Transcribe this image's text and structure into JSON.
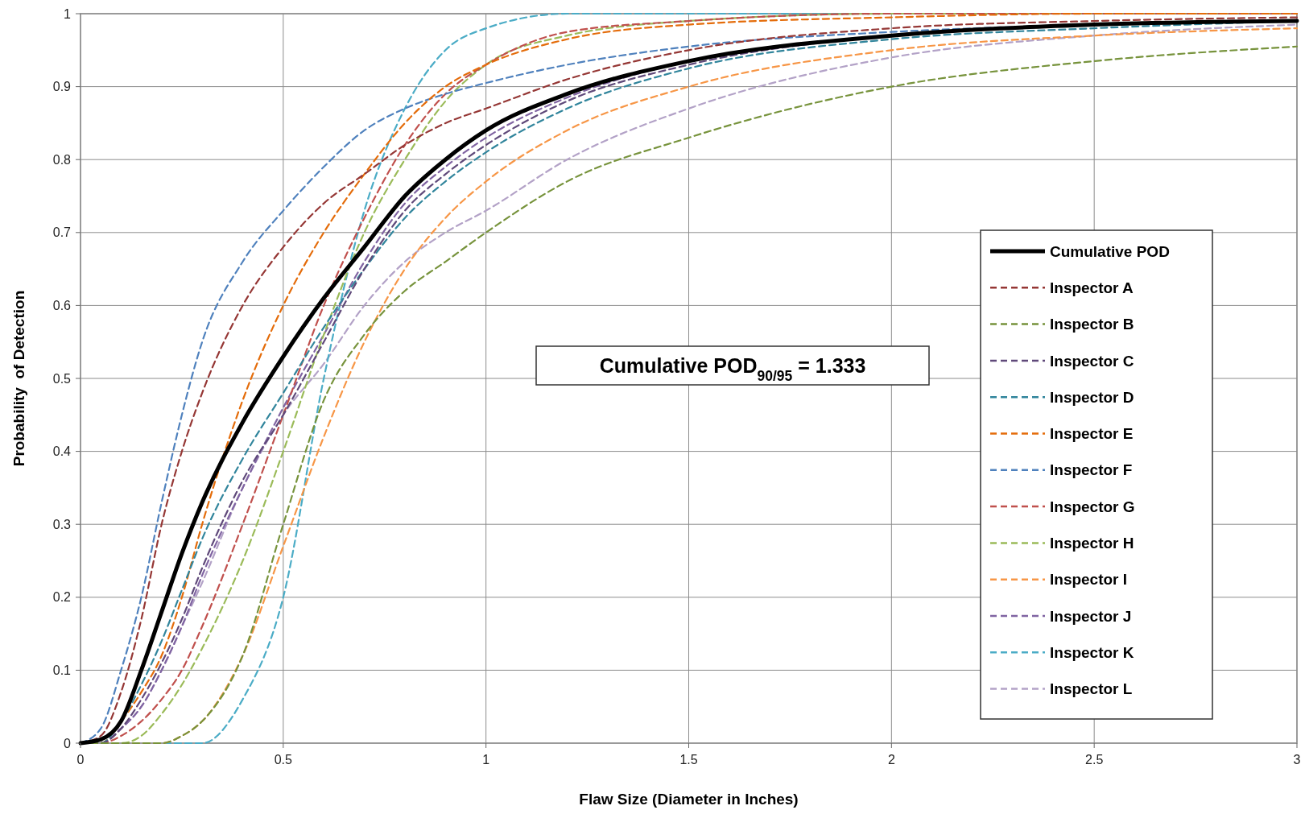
{
  "chart_data": {
    "type": "line",
    "xlabel": "Flaw Size (Diameter in Inches)",
    "ylabel": "Probability  of Detection",
    "annotations": [
      "Cumulative POD$_{90/95}$ = 1.333"
    ],
    "x": [
      0,
      0.05,
      0.1,
      0.15,
      0.2,
      0.25,
      0.3,
      0.4,
      0.5,
      0.6,
      0.7,
      0.8,
      0.9,
      1,
      1.2,
      1.5,
      2,
      2.5,
      3
    ],
    "xlim": [
      0,
      3
    ],
    "xticks": [
      0,
      0.5,
      1,
      1.5,
      2,
      2.5,
      3
    ],
    "ylim": [
      0,
      1
    ],
    "yticks": [
      0,
      0.1,
      0.2,
      0.3,
      0.4,
      0.5,
      0.6,
      0.7,
      0.8,
      0.9,
      1
    ],
    "grid": true,
    "legend": "right",
    "series": [
      {
        "name": "Cumulative POD",
        "color": "#000000",
        "line_style": "solid",
        "values": [
          0,
          0.005,
          0.03,
          0.1,
          0.18,
          0.26,
          0.33,
          0.44,
          0.53,
          0.61,
          0.68,
          0.75,
          0.8,
          0.84,
          0.89,
          0.935,
          0.97,
          0.985,
          0.99
        ]
      },
      {
        "name": "Inspector A",
        "color": "#953735",
        "line_style": "dashed",
        "values": [
          0,
          0.01,
          0.07,
          0.17,
          0.3,
          0.4,
          0.48,
          0.6,
          0.68,
          0.74,
          0.78,
          0.82,
          0.85,
          0.87,
          0.91,
          0.95,
          0.98,
          0.99,
          0.995
        ]
      },
      {
        "name": "Inspector B",
        "color": "#77933c",
        "line_style": "dashed",
        "values": [
          0,
          0,
          0,
          0,
          0,
          0.01,
          0.03,
          0.12,
          0.3,
          0.47,
          0.56,
          0.62,
          0.66,
          0.7,
          0.77,
          0.83,
          0.9,
          0.935,
          0.955
        ]
      },
      {
        "name": "Inspector C",
        "color": "#5f497a",
        "line_style": "dashed",
        "values": [
          0,
          0,
          0.02,
          0.06,
          0.11,
          0.17,
          0.24,
          0.36,
          0.45,
          0.55,
          0.65,
          0.73,
          0.78,
          0.82,
          0.88,
          0.93,
          0.97,
          0.985,
          0.99
        ]
      },
      {
        "name": "Inspector D",
        "color": "#31859c",
        "line_style": "dashed",
        "values": [
          0,
          0,
          0.03,
          0.08,
          0.14,
          0.21,
          0.28,
          0.39,
          0.48,
          0.57,
          0.65,
          0.72,
          0.77,
          0.81,
          0.87,
          0.925,
          0.965,
          0.98,
          0.99
        ]
      },
      {
        "name": "Inspector E",
        "color": "#e46c0a",
        "line_style": "dashed",
        "values": [
          0,
          0,
          0.03,
          0.07,
          0.12,
          0.2,
          0.3,
          0.47,
          0.6,
          0.7,
          0.78,
          0.85,
          0.9,
          0.93,
          0.965,
          0.985,
          0.995,
          1,
          1
        ]
      },
      {
        "name": "Inspector F",
        "color": "#4f81bd",
        "line_style": "dashed",
        "values": [
          0,
          0.02,
          0.1,
          0.2,
          0.33,
          0.45,
          0.55,
          0.66,
          0.73,
          0.79,
          0.84,
          0.87,
          0.89,
          0.905,
          0.93,
          0.955,
          0.975,
          0.985,
          0.99
        ]
      },
      {
        "name": "Inspector G",
        "color": "#c0504d",
        "line_style": "dashed",
        "values": [
          0,
          0,
          0.01,
          0.03,
          0.06,
          0.1,
          0.16,
          0.3,
          0.45,
          0.6,
          0.72,
          0.82,
          0.89,
          0.93,
          0.975,
          0.99,
          1,
          1,
          1
        ]
      },
      {
        "name": "Inspector H",
        "color": "#9bbb59",
        "line_style": "dashed",
        "values": [
          0,
          0,
          0,
          0.01,
          0.04,
          0.08,
          0.13,
          0.25,
          0.4,
          0.56,
          0.7,
          0.8,
          0.88,
          0.93,
          0.97,
          0.99,
          1,
          1,
          1
        ]
      },
      {
        "name": "Inspector I",
        "color": "#f79646",
        "line_style": "dashed",
        "values": [
          0,
          0,
          0,
          0,
          0,
          0.01,
          0.03,
          0.12,
          0.27,
          0.42,
          0.55,
          0.65,
          0.72,
          0.77,
          0.84,
          0.9,
          0.95,
          0.97,
          0.98
        ]
      },
      {
        "name": "Inspector J",
        "color": "#8064a2",
        "line_style": "dashed",
        "values": [
          0,
          0,
          0.02,
          0.05,
          0.1,
          0.16,
          0.23,
          0.35,
          0.46,
          0.56,
          0.66,
          0.74,
          0.79,
          0.83,
          0.885,
          0.935,
          0.97,
          0.985,
          0.99
        ]
      },
      {
        "name": "Inspector K",
        "color": "#4bacc6",
        "line_style": "dashed",
        "values": [
          0,
          0,
          0,
          0,
          0,
          0,
          0,
          0.06,
          0.2,
          0.5,
          0.73,
          0.87,
          0.95,
          0.98,
          1,
          1,
          1,
          1,
          1
        ]
      },
      {
        "name": "Inspector L",
        "color": "#b3a2c7",
        "line_style": "dashed",
        "values": [
          0,
          0,
          0.02,
          0.05,
          0.1,
          0.16,
          0.22,
          0.35,
          0.45,
          0.52,
          0.6,
          0.66,
          0.7,
          0.73,
          0.8,
          0.87,
          0.94,
          0.97,
          0.985
        ]
      }
    ]
  }
}
